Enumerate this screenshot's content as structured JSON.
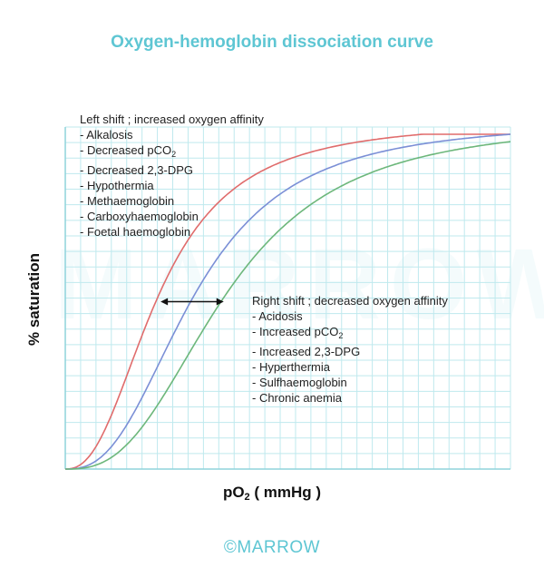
{
  "title": "Oxygen-hemoglobin dissociation curve",
  "watermark": "MARROW",
  "brand": "©MARROW",
  "left_shift": {
    "heading": "Left shift ; increased oxygen affinity",
    "items": [
      {
        "text": "- Alkalosis",
        "sub": "",
        "tail": ""
      },
      {
        "text": "- Decreased pCO",
        "sub": "2",
        "tail": ""
      },
      {
        "text": "- Decreased 2,3-DPG",
        "sub": "",
        "tail": ""
      },
      {
        "text": "- Hypothermia",
        "sub": "",
        "tail": ""
      },
      {
        "text": "- Methaemoglobin",
        "sub": "",
        "tail": ""
      },
      {
        "text": "- Carboxyhaemoglobin",
        "sub": "",
        "tail": ""
      },
      {
        "text": "- Foetal haemoglobin",
        "sub": "",
        "tail": ""
      }
    ]
  },
  "right_shift": {
    "heading": "Right shift ; decreased oxygen affinity",
    "items": [
      {
        "text": "- Acidosis",
        "sub": "",
        "tail": ""
      },
      {
        "text": "- Increased pCO",
        "sub": "2",
        "tail": ""
      },
      {
        "text": "- Increased 2,3-DPG",
        "sub": "",
        "tail": ""
      },
      {
        "text": "- Hyperthermia",
        "sub": "",
        "tail": ""
      },
      {
        "text": "- Sulfhaemoglobin",
        "sub": "",
        "tail": ""
      },
      {
        "text": "- Chronic anemia",
        "sub": "",
        "tail": ""
      }
    ]
  },
  "chart_data": {
    "type": "line",
    "title": "Oxygen-hemoglobin dissociation curve",
    "xlabel": "pO2 ( mmHg )",
    "xlabel_main": "pO",
    "xlabel_sub": "2",
    "xlabel_tail": " ( mmHg )",
    "ylabel": "% saturation",
    "grid": true,
    "colors": {
      "left": "#e06c6c",
      "normal": "#7b8fd6",
      "right": "#6db77b",
      "grid": "#bfe9ee",
      "axis": "#8fd3dc"
    },
    "series": [
      {
        "key": "left",
        "p50": 0.21,
        "n": 2.4
      },
      {
        "key": "normal",
        "p50": 0.29,
        "n": 2.6
      },
      {
        "key": "right",
        "p50": 0.36,
        "n": 2.7
      }
    ],
    "shift_arrow": {
      "at_saturation": 0.5
    }
  }
}
